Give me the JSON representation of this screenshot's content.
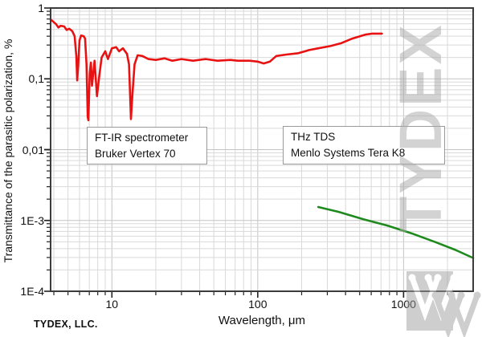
{
  "footer": "TYDEX, LLC.",
  "watermark": {
    "text": "TYDEX"
  },
  "colors": {
    "red_series": "#e81212",
    "green_series": "#1e8a1e",
    "grid_minor": "#d9d9d9",
    "grid_major": "#c4c4c4",
    "frame": "#3c3c3c",
    "watermark_gray": "#a8a8a8"
  },
  "chart_data": {
    "type": "line",
    "title": "",
    "xlabel": "Wavelength, μm",
    "ylabel": "Transmittance of the parasitic polarization, %",
    "x_scale": "log",
    "y_scale": "log",
    "xlim": [
      3.8,
      3000
    ],
    "ylim": [
      0.0001,
      1
    ],
    "grid": true,
    "legend_position": "none",
    "x_ticks": [
      {
        "value": 10,
        "label": "10"
      },
      {
        "value": 100,
        "label": "100"
      },
      {
        "value": 1000,
        "label": "1000"
      }
    ],
    "y_ticks": [
      {
        "value": 1,
        "label": "1"
      },
      {
        "value": 0.1,
        "label": "0,1"
      },
      {
        "value": 0.01,
        "label": "0,01"
      },
      {
        "value": 0.001,
        "label": "1E-3"
      },
      {
        "value": 0.0001,
        "label": "1E-4"
      }
    ],
    "series": [
      {
        "name": "FT-IR spectrometer Bruker Vertex 70",
        "color": "#e81212",
        "points": [
          [
            3.8,
            0.69
          ],
          [
            4.0,
            0.63
          ],
          [
            4.15,
            0.59
          ],
          [
            4.3,
            0.53
          ],
          [
            4.45,
            0.56
          ],
          [
            4.7,
            0.55
          ],
          [
            4.9,
            0.49
          ],
          [
            5.1,
            0.51
          ],
          [
            5.35,
            0.47
          ],
          [
            5.55,
            0.4
          ],
          [
            5.7,
            0.21
          ],
          [
            5.78,
            0.095
          ],
          [
            5.88,
            0.16
          ],
          [
            6.0,
            0.35
          ],
          [
            6.15,
            0.41
          ],
          [
            6.4,
            0.4
          ],
          [
            6.55,
            0.37
          ],
          [
            6.7,
            0.16
          ],
          [
            6.83,
            0.029
          ],
          [
            6.9,
            0.026
          ],
          [
            7.05,
            0.12
          ],
          [
            7.18,
            0.17
          ],
          [
            7.3,
            0.08
          ],
          [
            7.6,
            0.18
          ],
          [
            7.9,
            0.057
          ],
          [
            8.2,
            0.11
          ],
          [
            8.5,
            0.2
          ],
          [
            9.0,
            0.245
          ],
          [
            9.4,
            0.19
          ],
          [
            10.0,
            0.27
          ],
          [
            10.7,
            0.28
          ],
          [
            11.2,
            0.245
          ],
          [
            11.9,
            0.27
          ],
          [
            12.7,
            0.225
          ],
          [
            13.1,
            0.16
          ],
          [
            13.5,
            0.027
          ],
          [
            13.8,
            0.057
          ],
          [
            14.3,
            0.16
          ],
          [
            15.0,
            0.215
          ],
          [
            16.2,
            0.21
          ],
          [
            17.8,
            0.19
          ],
          [
            20,
            0.185
          ],
          [
            23,
            0.195
          ],
          [
            26,
            0.18
          ],
          [
            30,
            0.19
          ],
          [
            36,
            0.18
          ],
          [
            44,
            0.19
          ],
          [
            53,
            0.18
          ],
          [
            65,
            0.185
          ],
          [
            73,
            0.18
          ],
          [
            88,
            0.18
          ],
          [
            100,
            0.175
          ],
          [
            110,
            0.165
          ],
          [
            121,
            0.175
          ],
          [
            134,
            0.21
          ],
          [
            157,
            0.22
          ],
          [
            190,
            0.23
          ],
          [
            225,
            0.255
          ],
          [
            260,
            0.27
          ],
          [
            315,
            0.29
          ],
          [
            375,
            0.32
          ],
          [
            445,
            0.37
          ],
          [
            545,
            0.42
          ],
          [
            610,
            0.435
          ],
          [
            710,
            0.435
          ]
        ]
      },
      {
        "name": "THz TDS Menlo Systems Tera K8",
        "color": "#1e8a1e",
        "points": [
          [
            260,
            0.00155
          ],
          [
            360,
            0.00132
          ],
          [
            530,
            0.00104
          ],
          [
            770,
            0.00085
          ],
          [
            1130,
            0.00066
          ],
          [
            1650,
            0.000495
          ],
          [
            2270,
            0.000383
          ],
          [
            3000,
            0.000295
          ]
        ]
      }
    ],
    "annotations": [
      {
        "lines": [
          "FT-IR spectrometer",
          "Bruker Vertex 70"
        ]
      },
      {
        "lines": [
          "THz TDS",
          "Menlo Systems Tera K8"
        ]
      }
    ]
  }
}
